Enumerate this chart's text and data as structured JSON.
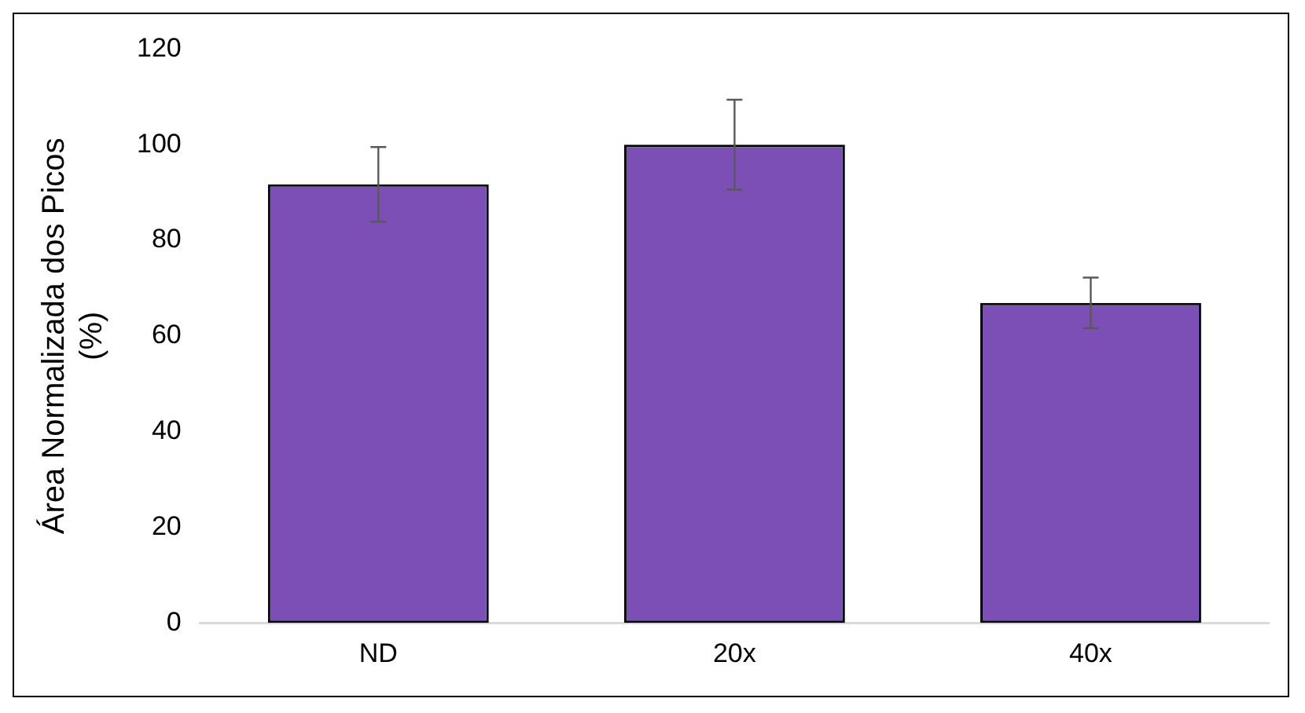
{
  "chart_data": {
    "type": "bar",
    "ylabel": "Área Normalizada dos Picos (%)",
    "categories": [
      "ND",
      "20x",
      "40x"
    ],
    "values": [
      91.7,
      100,
      66.9
    ],
    "color": "#7b4fb5",
    "errors": [
      7.8,
      9.4,
      5.3
    ],
    "ylim": [
      0,
      120
    ],
    "yticks": [
      0,
      20,
      40,
      60,
      80,
      100,
      120
    ],
    "grid": false,
    "legend": false
  }
}
